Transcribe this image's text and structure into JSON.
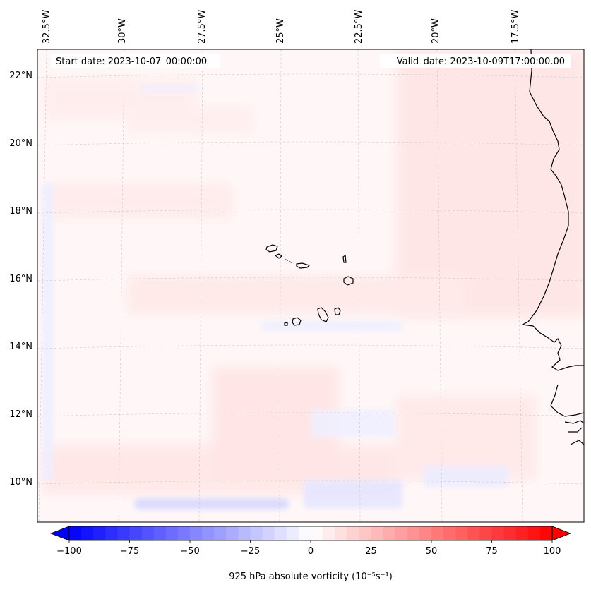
{
  "header": {
    "start_date": "Start date: 2023-10-07_00:00:00",
    "valid_date": "Valid_date: 2023-10-09T17:00:00.00"
  },
  "axes": {
    "longitude_labels": [
      "32.5°W",
      "30°W",
      "27.5°W",
      "25°W",
      "22.5°W",
      "20°W",
      "17.5°W"
    ],
    "latitude_labels": [
      "22°N",
      "20°N",
      "18°N",
      "16°N",
      "14°N",
      "12°N",
      "10°N"
    ]
  },
  "colorbar": {
    "label": "925 hPa absolute vorticity (10⁻⁵s⁻¹)",
    "ticks": [
      "−100",
      "−75",
      "−50",
      "−25",
      "0",
      "25",
      "50",
      "75",
      "100"
    ],
    "min": -100,
    "max": 100,
    "colormap": "bwr",
    "extend": "both"
  },
  "colors": {
    "negative": "#0000ff",
    "neutral": "#ffffff",
    "positive": "#ff0000",
    "coastline": "#000000",
    "gridline": "#b0b0b0"
  }
}
